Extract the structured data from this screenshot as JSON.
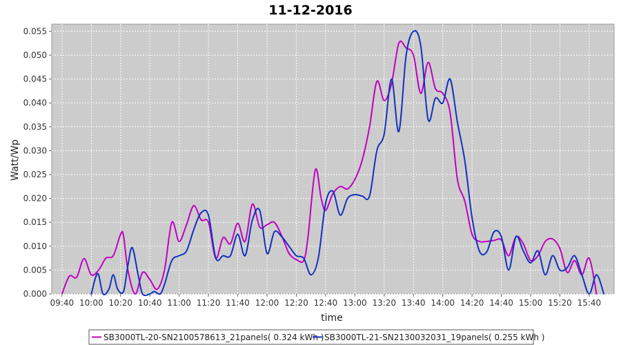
{
  "chart_data": {
    "type": "line",
    "title": "11-12-2016",
    "xlabel": "time",
    "ylabel": "Watt/Wp",
    "x_ticks": [
      "09:40",
      "10:00",
      "10:20",
      "10:40",
      "11:00",
      "11:20",
      "11:40",
      "12:00",
      "12:20",
      "12:40",
      "13:00",
      "13:20",
      "13:40",
      "14:00",
      "14:20",
      "14:40",
      "15:00",
      "15:20",
      "15:40"
    ],
    "y_ticks": [
      "0.000",
      "0.005",
      "0.010",
      "0.015",
      "0.020",
      "0.025",
      "0.030",
      "0.035",
      "0.040",
      "0.045",
      "0.050",
      "0.055"
    ],
    "xlim": [
      "09:33",
      "15:57"
    ],
    "ylim": [
      0,
      0.0565
    ],
    "grid": true,
    "legend_position": "bottom",
    "colors": {
      "plot_background": "#cccccc",
      "grid": "#ffffff"
    },
    "series": [
      {
        "name": "SB3000TL-20-SN2100578613_21panels( 0.324 kWh )",
        "color": "#c000c0",
        "points": [
          [
            "09:40",
            0.0
          ],
          [
            "09:45",
            0.0037
          ],
          [
            "09:50",
            0.0035
          ],
          [
            "09:55",
            0.0074
          ],
          [
            "10:00",
            0.004
          ],
          [
            "10:05",
            0.005
          ],
          [
            "10:10",
            0.0075
          ],
          [
            "10:15",
            0.008
          ],
          [
            "10:20",
            0.0125
          ],
          [
            "10:22",
            0.0122
          ],
          [
            "10:25",
            0.005
          ],
          [
            "10:30",
            0.0
          ],
          [
            "10:35",
            0.0045
          ],
          [
            "10:40",
            0.003
          ],
          [
            "10:45",
            0.001
          ],
          [
            "10:50",
            0.005
          ],
          [
            "10:55",
            0.015
          ],
          [
            "11:00",
            0.011
          ],
          [
            "11:05",
            0.0145
          ],
          [
            "11:10",
            0.0185
          ],
          [
            "11:15",
            0.0155
          ],
          [
            "11:20",
            0.015
          ],
          [
            "11:25",
            0.0075
          ],
          [
            "11:30",
            0.0118
          ],
          [
            "11:35",
            0.0105
          ],
          [
            "11:40",
            0.0148
          ],
          [
            "11:45",
            0.011
          ],
          [
            "11:50",
            0.0188
          ],
          [
            "11:55",
            0.014
          ],
          [
            "12:00",
            0.0145
          ],
          [
            "12:05",
            0.015
          ],
          [
            "12:10",
            0.0122
          ],
          [
            "12:15",
            0.0085
          ],
          [
            "12:20",
            0.0072
          ],
          [
            "12:25",
            0.007
          ],
          [
            "12:28",
            0.012
          ],
          [
            "12:33",
            0.026
          ],
          [
            "12:37",
            0.02
          ],
          [
            "12:40",
            0.0175
          ],
          [
            "12:45",
            0.021
          ],
          [
            "12:50",
            0.0225
          ],
          [
            "12:55",
            0.022
          ],
          [
            "13:00",
            0.024
          ],
          [
            "13:05",
            0.028
          ],
          [
            "13:10",
            0.035
          ],
          [
            "13:15",
            0.0445
          ],
          [
            "13:20",
            0.0405
          ],
          [
            "13:25",
            0.044
          ],
          [
            "13:30",
            0.0525
          ],
          [
            "13:35",
            0.0515
          ],
          [
            "13:40",
            0.05
          ],
          [
            "13:45",
            0.042
          ],
          [
            "13:50",
            0.0485
          ],
          [
            "13:55",
            0.043
          ],
          [
            "14:00",
            0.042
          ],
          [
            "14:05",
            0.038
          ],
          [
            "14:10",
            0.024
          ],
          [
            "14:15",
            0.0195
          ],
          [
            "14:20",
            0.0125
          ],
          [
            "14:25",
            0.011
          ],
          [
            "14:30",
            0.011
          ],
          [
            "14:35",
            0.0112
          ],
          [
            "14:40",
            0.0113
          ],
          [
            "14:45",
            0.008
          ],
          [
            "14:50",
            0.012
          ],
          [
            "14:55",
            0.0105
          ],
          [
            "15:00",
            0.007
          ],
          [
            "15:05",
            0.008
          ],
          [
            "15:10",
            0.011
          ],
          [
            "15:15",
            0.0115
          ],
          [
            "15:20",
            0.0095
          ],
          [
            "15:25",
            0.0045
          ],
          [
            "15:30",
            0.007
          ],
          [
            "15:35",
            0.004
          ],
          [
            "15:40",
            0.0075
          ],
          [
            "15:45",
            0.0
          ]
        ]
      },
      {
        "name": "SB3000TL-21-SN2130032031_19panels( 0.255 kWh )",
        "color": "#1030c0",
        "points": [
          [
            "10:00",
            0.0
          ],
          [
            "10:03",
            0.0035
          ],
          [
            "10:05",
            0.004
          ],
          [
            "10:08",
            0.0
          ],
          [
            "10:12",
            0.001
          ],
          [
            "10:15",
            0.004
          ],
          [
            "10:18",
            0.001
          ],
          [
            "10:22",
            0.0005
          ],
          [
            "10:25",
            0.006
          ],
          [
            "10:28",
            0.0097
          ],
          [
            "10:32",
            0.004
          ],
          [
            "10:35",
            0.0
          ],
          [
            "10:40",
            0.0
          ],
          [
            "10:43",
            0.0005
          ],
          [
            "10:47",
            0.0
          ],
          [
            "10:50",
            0.002
          ],
          [
            "10:55",
            0.007
          ],
          [
            "11:00",
            0.008
          ],
          [
            "11:05",
            0.009
          ],
          [
            "11:10",
            0.0135
          ],
          [
            "11:15",
            0.017
          ],
          [
            "11:20",
            0.0165
          ],
          [
            "11:25",
            0.0075
          ],
          [
            "11:30",
            0.008
          ],
          [
            "11:35",
            0.008
          ],
          [
            "11:40",
            0.0125
          ],
          [
            "11:45",
            0.008
          ],
          [
            "11:50",
            0.0155
          ],
          [
            "11:55",
            0.0175
          ],
          [
            "12:00",
            0.0085
          ],
          [
            "12:05",
            0.013
          ],
          [
            "12:10",
            0.012
          ],
          [
            "12:15",
            0.01
          ],
          [
            "12:20",
            0.008
          ],
          [
            "12:25",
            0.0075
          ],
          [
            "12:30",
            0.004
          ],
          [
            "12:35",
            0.0075
          ],
          [
            "12:40",
            0.019
          ],
          [
            "12:45",
            0.0215
          ],
          [
            "12:50",
            0.0165
          ],
          [
            "12:55",
            0.02
          ],
          [
            "13:00",
            0.0208
          ],
          [
            "13:05",
            0.0205
          ],
          [
            "13:10",
            0.0205
          ],
          [
            "13:15",
            0.03
          ],
          [
            "13:20",
            0.0335
          ],
          [
            "13:25",
            0.045
          ],
          [
            "13:30",
            0.034
          ],
          [
            "13:35",
            0.05
          ],
          [
            "13:40",
            0.055
          ],
          [
            "13:45",
            0.052
          ],
          [
            "13:50",
            0.0365
          ],
          [
            "13:55",
            0.041
          ],
          [
            "14:00",
            0.04
          ],
          [
            "14:05",
            0.045
          ],
          [
            "14:10",
            0.036
          ],
          [
            "14:15",
            0.028
          ],
          [
            "14:20",
            0.016
          ],
          [
            "14:25",
            0.009
          ],
          [
            "14:30",
            0.0088
          ],
          [
            "14:35",
            0.013
          ],
          [
            "14:40",
            0.012
          ],
          [
            "14:45",
            0.005
          ],
          [
            "14:50",
            0.012
          ],
          [
            "14:55",
            0.009
          ],
          [
            "15:00",
            0.0065
          ],
          [
            "15:05",
            0.009
          ],
          [
            "15:10",
            0.004
          ],
          [
            "15:15",
            0.008
          ],
          [
            "15:20",
            0.005
          ],
          [
            "15:25",
            0.0055
          ],
          [
            "15:30",
            0.008
          ],
          [
            "15:35",
            0.004
          ],
          [
            "15:40",
            0.0
          ],
          [
            "15:45",
            0.004
          ],
          [
            "15:50",
            0.0
          ]
        ]
      }
    ]
  }
}
